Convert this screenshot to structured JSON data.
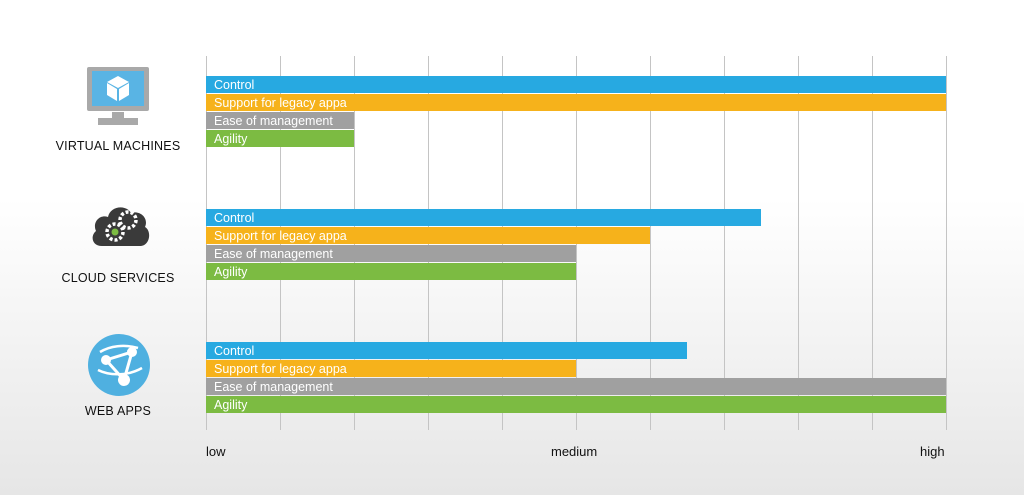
{
  "chart_data": {
    "type": "bar",
    "orientation": "horizontal",
    "x_tick_labels": [
      "low",
      "medium",
      "high"
    ],
    "xlim": [
      0,
      10
    ],
    "grid": true,
    "groups": [
      {
        "name": "VIRTUAL MACHINES",
        "icon": "monitor-cube-icon",
        "bars": [
          {
            "label": "Control",
            "value": 10
          },
          {
            "label": "Support for legacy appa",
            "value": 10
          },
          {
            "label": "Ease of management",
            "value": 2
          },
          {
            "label": "Agility",
            "value": 2
          }
        ]
      },
      {
        "name": "CLOUD SERVICES",
        "icon": "cloud-gears-icon",
        "bars": [
          {
            "label": "Control",
            "value": 7.5
          },
          {
            "label": "Support for legacy appa",
            "value": 6
          },
          {
            "label": "Ease of management",
            "value": 5
          },
          {
            "label": "Agility",
            "value": 5
          }
        ]
      },
      {
        "name": "WEB APPS",
        "icon": "web-app-globe-icon",
        "bars": [
          {
            "label": "Control",
            "value": 6.5
          },
          {
            "label": "Support for legacy appa",
            "value": 5
          },
          {
            "label": "Ease of management",
            "value": 10
          },
          {
            "label": "Agility",
            "value": 10
          }
        ]
      }
    ],
    "colors": {
      "Control": "#27a9e1",
      "Support for legacy appa": "#f6b21b",
      "Ease of management": "#a0a0a0",
      "Agility": "#7cbb42"
    }
  }
}
